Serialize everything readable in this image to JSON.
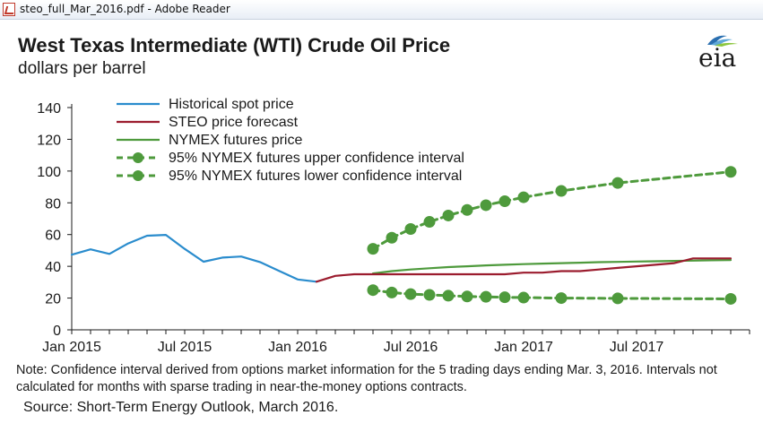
{
  "window": {
    "title": "steo_full_Mar_2016.pdf - Adobe Reader",
    "icon": "pdf-file-icon"
  },
  "logo": {
    "text": "eia",
    "icon": "eia-logo"
  },
  "chart_data": {
    "type": "line",
    "title": "West Texas Intermediate (WTI) Crude Oil Price",
    "subtitle": "dollars per barrel",
    "xlabel": "",
    "ylabel": "",
    "ylim": [
      0,
      140
    ],
    "yticks": [
      0,
      20,
      40,
      60,
      80,
      100,
      120,
      140
    ],
    "xticks": [
      {
        "label": "Jan 2015",
        "month": 0
      },
      {
        "label": "Jul 2015",
        "month": 6
      },
      {
        "label": "Jan 2016",
        "month": 12
      },
      {
        "label": "Jul 2016",
        "month": 18
      },
      {
        "label": "Jan 2017",
        "month": 24
      },
      {
        "label": "Jul 2017",
        "month": 30
      }
    ],
    "x_unit": "months since Jan 2015",
    "grid": false,
    "legend_position": "top-left",
    "series": [
      {
        "name": "Historical spot price",
        "style": "solid",
        "color": "#2a8ccd",
        "points": [
          [
            0,
            47.3
          ],
          [
            1,
            50.7
          ],
          [
            2,
            47.8
          ],
          [
            3,
            54.4
          ],
          [
            4,
            59.3
          ],
          [
            5,
            59.8
          ],
          [
            6,
            51.0
          ],
          [
            7,
            42.9
          ],
          [
            8,
            45.5
          ],
          [
            9,
            46.2
          ],
          [
            10,
            42.7
          ],
          [
            11,
            37.2
          ],
          [
            12,
            31.7
          ],
          [
            13,
            30.3
          ]
        ]
      },
      {
        "name": "STEO price forecast",
        "style": "solid",
        "color": "#9b1c2e",
        "points": [
          [
            13,
            30.3
          ],
          [
            14,
            34.0
          ],
          [
            15,
            35.0
          ],
          [
            16,
            35.0
          ],
          [
            17,
            35.0
          ],
          [
            18,
            35.0
          ],
          [
            19,
            35.0
          ],
          [
            20,
            35.0
          ],
          [
            21,
            35.0
          ],
          [
            22,
            35.0
          ],
          [
            23,
            35.0
          ],
          [
            24,
            36.0
          ],
          [
            25,
            36.0
          ],
          [
            26,
            37.0
          ],
          [
            27,
            37.0
          ],
          [
            28,
            38.0
          ],
          [
            29,
            39.0
          ],
          [
            30,
            40.0
          ],
          [
            31,
            41.0
          ],
          [
            32,
            42.0
          ],
          [
            33,
            45.0
          ],
          [
            34,
            45.0
          ],
          [
            35,
            45.0
          ]
        ]
      },
      {
        "name": "NYMEX futures price",
        "style": "solid",
        "color": "#4e9a3c",
        "points": [
          [
            16,
            35.5
          ],
          [
            17,
            37.0
          ],
          [
            18,
            38.0
          ],
          [
            19,
            38.8
          ],
          [
            20,
            39.5
          ],
          [
            21,
            40.0
          ],
          [
            22,
            40.6
          ],
          [
            23,
            41.0
          ],
          [
            24,
            41.4
          ],
          [
            25,
            41.7
          ],
          [
            26,
            42.0
          ],
          [
            27,
            42.3
          ],
          [
            28,
            42.6
          ],
          [
            29,
            42.8
          ],
          [
            30,
            43.0
          ],
          [
            31,
            43.2
          ],
          [
            32,
            43.4
          ],
          [
            33,
            43.6
          ],
          [
            34,
            43.8
          ],
          [
            35,
            44.0
          ]
        ]
      },
      {
        "name": "95% NYMEX futures upper confidence interval",
        "style": "dashed-markers",
        "color": "#4e9a3c",
        "points": [
          [
            16,
            51.0
          ],
          [
            17,
            58.0
          ],
          [
            18,
            63.5
          ],
          [
            19,
            68.0
          ],
          [
            20,
            72.0
          ],
          [
            21,
            75.5
          ],
          [
            22,
            78.5
          ],
          [
            23,
            81.0
          ],
          [
            24,
            83.5
          ],
          [
            26,
            87.5
          ],
          [
            29,
            92.5
          ],
          [
            35,
            99.5
          ]
        ]
      },
      {
        "name": "95% NYMEX futures lower confidence interval",
        "style": "dashed-markers",
        "color": "#4e9a3c",
        "points": [
          [
            16,
            25.0
          ],
          [
            17,
            23.5
          ],
          [
            18,
            22.5
          ],
          [
            19,
            22.0
          ],
          [
            20,
            21.5
          ],
          [
            21,
            21.0
          ],
          [
            22,
            20.8
          ],
          [
            23,
            20.5
          ],
          [
            24,
            20.3
          ],
          [
            26,
            20.0
          ],
          [
            29,
            19.8
          ],
          [
            35,
            19.5
          ]
        ]
      }
    ]
  },
  "note": "Note: Confidence interval derived from options market information for the 5 trading days ending Mar. 3, 2016. Intervals not calculated for months with sparse trading in near-the-money options contracts.",
  "source": "Source: Short-Term Energy Outlook, March 2016."
}
